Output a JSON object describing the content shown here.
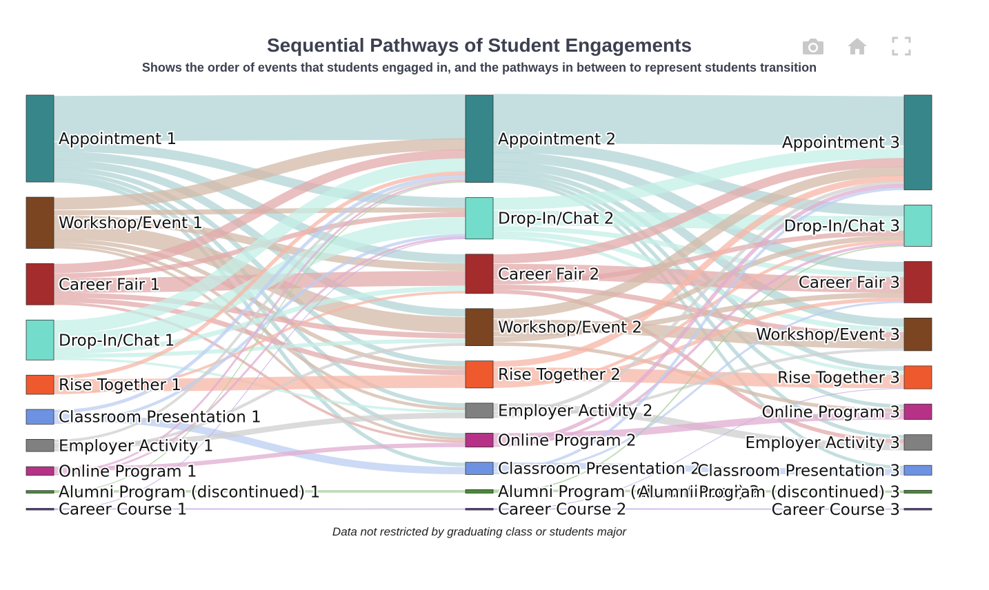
{
  "toolbar": {
    "icons": [
      "camera-icon",
      "home-icon",
      "fullscreen-icon"
    ]
  },
  "chart_data": {
    "type": "sankey",
    "title": "Sequential Pathways of Student Engagements",
    "subtitle": "Shows the order of events that students engaged in, and the pathways in between to represent students transition",
    "footnote": "Data not restricted by graduating class or students major",
    "stages": [
      1,
      2,
      3
    ],
    "categories": [
      {
        "key": "appointment",
        "color": "#37868a",
        "link_color": "#b2d4d6"
      },
      {
        "key": "workshop",
        "color": "#7a4520",
        "link_color": "#d3b9a8"
      },
      {
        "key": "careerfair",
        "color": "#a52c2c",
        "link_color": "#e3aaaa"
      },
      {
        "key": "dropin",
        "color": "#74dccb",
        "link_color": "#c4efe7"
      },
      {
        "key": "rise",
        "color": "#ee5a2d",
        "link_color": "#f7b6a6"
      },
      {
        "key": "classroom",
        "color": "#6e92e2",
        "link_color": "#bccdf2"
      },
      {
        "key": "employer",
        "color": "#808080",
        "link_color": "#cfcfcf"
      },
      {
        "key": "online",
        "color": "#b53287",
        "link_color": "#e0acd0"
      },
      {
        "key": "alumni",
        "color": "#4a8a3a",
        "link_color": "#a9cf9c"
      },
      {
        "key": "course",
        "color": "#5a3aa0",
        "link_color": "#c0aee6"
      }
    ],
    "nodes": [
      {
        "id": "a1",
        "label": "Appointment 1",
        "stage": 1,
        "cat": "appointment",
        "value": 200
      },
      {
        "id": "w1",
        "label": "Workshop/Event 1",
        "stage": 1,
        "cat": "workshop",
        "value": 118
      },
      {
        "id": "c1",
        "label": "Career Fair 1",
        "stage": 1,
        "cat": "careerfair",
        "value": 95
      },
      {
        "id": "d1",
        "label": "Drop-In/Chat 1",
        "stage": 1,
        "cat": "dropin",
        "value": 92
      },
      {
        "id": "r1",
        "label": "Rise Together 1",
        "stage": 1,
        "cat": "rise",
        "value": 44
      },
      {
        "id": "cp1",
        "label": "Classroom Presentation 1",
        "stage": 1,
        "cat": "classroom",
        "value": 34
      },
      {
        "id": "e1",
        "label": "Employer Activity 1",
        "stage": 1,
        "cat": "employer",
        "value": 28
      },
      {
        "id": "o1",
        "label": "Online Program 1",
        "stage": 1,
        "cat": "online",
        "value": 20
      },
      {
        "id": "al1",
        "label": "Alumni Program (discontinued) 1",
        "stage": 1,
        "cat": "alumni",
        "value": 6
      },
      {
        "id": "cc1",
        "label": "Career Course 1",
        "stage": 1,
        "cat": "course",
        "value": 4
      },
      {
        "id": "a2",
        "label": "Appointment 2",
        "stage": 2,
        "cat": "appointment",
        "value": 200
      },
      {
        "id": "d2",
        "label": "Drop-In/Chat 2",
        "stage": 2,
        "cat": "dropin",
        "value": 95
      },
      {
        "id": "c2",
        "label": "Career Fair 2",
        "stage": 2,
        "cat": "careerfair",
        "value": 90
      },
      {
        "id": "w2",
        "label": "Workshop/Event 2",
        "stage": 2,
        "cat": "workshop",
        "value": 85
      },
      {
        "id": "r2",
        "label": "Rise Together 2",
        "stage": 2,
        "cat": "rise",
        "value": 62
      },
      {
        "id": "e2",
        "label": "Employer Activity 2",
        "stage": 2,
        "cat": "employer",
        "value": 34
      },
      {
        "id": "o2",
        "label": "Online Program 2",
        "stage": 2,
        "cat": "online",
        "value": 32
      },
      {
        "id": "cp2",
        "label": "Classroom Presentation 2",
        "stage": 2,
        "cat": "classroom",
        "value": 28
      },
      {
        "id": "al2",
        "label": "Alumni Program (discontinued) 2",
        "stage": 2,
        "cat": "alumni",
        "value": 8
      },
      {
        "id": "cc2",
        "label": "Career Course 2",
        "stage": 2,
        "cat": "course",
        "value": 4
      },
      {
        "id": "a3",
        "label": "Appointment 3",
        "stage": 3,
        "cat": "appointment",
        "value": 165
      },
      {
        "id": "d3",
        "label": "Drop-In/Chat 3",
        "stage": 3,
        "cat": "dropin",
        "value": 72
      },
      {
        "id": "c3",
        "label": "Career Fair 3",
        "stage": 3,
        "cat": "careerfair",
        "value": 72
      },
      {
        "id": "w3",
        "label": "Workshop/Event 3",
        "stage": 3,
        "cat": "workshop",
        "value": 57
      },
      {
        "id": "r3",
        "label": "Rise Together 3",
        "stage": 3,
        "cat": "rise",
        "value": 40
      },
      {
        "id": "o3",
        "label": "Online Program 3",
        "stage": 3,
        "cat": "online",
        "value": 27
      },
      {
        "id": "e3",
        "label": "Employer Activity 3",
        "stage": 3,
        "cat": "employer",
        "value": 27
      },
      {
        "id": "cp3",
        "label": "Classroom Presentation 3",
        "stage": 3,
        "cat": "classroom",
        "value": 17
      },
      {
        "id": "al3",
        "label": "Alumni Program (discontinued) 3",
        "stage": 3,
        "cat": "alumni",
        "value": 5
      },
      {
        "id": "cc3",
        "label": "Career Course 3",
        "stage": 3,
        "cat": "course",
        "value": 3
      }
    ],
    "links": [
      {
        "source": "a1",
        "target": "a2",
        "value": 100
      },
      {
        "source": "a1",
        "target": "d2",
        "value": 20
      },
      {
        "source": "a1",
        "target": "c2",
        "value": 18
      },
      {
        "source": "a1",
        "target": "w2",
        "value": 15
      },
      {
        "source": "a1",
        "target": "r2",
        "value": 10
      },
      {
        "source": "a1",
        "target": "e2",
        "value": 8
      },
      {
        "source": "a1",
        "target": "o2",
        "value": 8
      },
      {
        "source": "a1",
        "target": "cp2",
        "value": 6
      },
      {
        "source": "w1",
        "target": "a2",
        "value": 25
      },
      {
        "source": "w1",
        "target": "d2",
        "value": 10
      },
      {
        "source": "w1",
        "target": "c2",
        "value": 15
      },
      {
        "source": "w1",
        "target": "w2",
        "value": 30
      },
      {
        "source": "w1",
        "target": "r2",
        "value": 8
      },
      {
        "source": "w1",
        "target": "e2",
        "value": 6
      },
      {
        "source": "w1",
        "target": "o2",
        "value": 5
      },
      {
        "source": "c1",
        "target": "a2",
        "value": 20
      },
      {
        "source": "c1",
        "target": "d2",
        "value": 10
      },
      {
        "source": "c1",
        "target": "c2",
        "value": 30
      },
      {
        "source": "c1",
        "target": "w2",
        "value": 10
      },
      {
        "source": "c1",
        "target": "r2",
        "value": 10
      },
      {
        "source": "c1",
        "target": "o2",
        "value": 5
      },
      {
        "source": "d1",
        "target": "a2",
        "value": 30
      },
      {
        "source": "d1",
        "target": "d2",
        "value": 35
      },
      {
        "source": "d1",
        "target": "c2",
        "value": 10
      },
      {
        "source": "d1",
        "target": "w2",
        "value": 8
      },
      {
        "source": "d1",
        "target": "e2",
        "value": 5
      },
      {
        "source": "r1",
        "target": "a2",
        "value": 8
      },
      {
        "source": "r1",
        "target": "r2",
        "value": 25
      },
      {
        "source": "r1",
        "target": "c2",
        "value": 5
      },
      {
        "source": "cp1",
        "target": "a2",
        "value": 6
      },
      {
        "source": "cp1",
        "target": "cp2",
        "value": 10
      },
      {
        "source": "cp1",
        "target": "d2",
        "value": 5
      },
      {
        "source": "e1",
        "target": "a2",
        "value": 5
      },
      {
        "source": "e1",
        "target": "e2",
        "value": 10
      },
      {
        "source": "e1",
        "target": "w2",
        "value": 5
      },
      {
        "source": "o1",
        "target": "o2",
        "value": 8
      },
      {
        "source": "o1",
        "target": "a2",
        "value": 4
      },
      {
        "source": "o1",
        "target": "d2",
        "value": 4
      },
      {
        "source": "al1",
        "target": "al2",
        "value": 3
      },
      {
        "source": "al1",
        "target": "a2",
        "value": 2
      },
      {
        "source": "cc1",
        "target": "cc2",
        "value": 2
      },
      {
        "source": "cc1",
        "target": "d2",
        "value": 1
      },
      {
        "source": "a2",
        "target": "a3",
        "value": 90
      },
      {
        "source": "a2",
        "target": "d3",
        "value": 20
      },
      {
        "source": "a2",
        "target": "c3",
        "value": 18
      },
      {
        "source": "a2",
        "target": "w3",
        "value": 15
      },
      {
        "source": "a2",
        "target": "r3",
        "value": 8
      },
      {
        "source": "a2",
        "target": "o3",
        "value": 6
      },
      {
        "source": "a2",
        "target": "e3",
        "value": 6
      },
      {
        "source": "a2",
        "target": "cp3",
        "value": 5
      },
      {
        "source": "d2",
        "target": "a3",
        "value": 20
      },
      {
        "source": "d2",
        "target": "d3",
        "value": 25
      },
      {
        "source": "d2",
        "target": "c3",
        "value": 8
      },
      {
        "source": "d2",
        "target": "w3",
        "value": 8
      },
      {
        "source": "d2",
        "target": "r3",
        "value": 5
      },
      {
        "source": "c2",
        "target": "a3",
        "value": 15
      },
      {
        "source": "c2",
        "target": "c3",
        "value": 25
      },
      {
        "source": "c2",
        "target": "d3",
        "value": 8
      },
      {
        "source": "c2",
        "target": "w3",
        "value": 8
      },
      {
        "source": "c2",
        "target": "e3",
        "value": 6
      },
      {
        "source": "w2",
        "target": "a3",
        "value": 15
      },
      {
        "source": "w2",
        "target": "w3",
        "value": 18
      },
      {
        "source": "w2",
        "target": "c3",
        "value": 8
      },
      {
        "source": "w2",
        "target": "d3",
        "value": 8
      },
      {
        "source": "w2",
        "target": "o3",
        "value": 5
      },
      {
        "source": "r2",
        "target": "a3",
        "value": 10
      },
      {
        "source": "r2",
        "target": "r3",
        "value": 20
      },
      {
        "source": "r2",
        "target": "c3",
        "value": 6
      },
      {
        "source": "r2",
        "target": "d3",
        "value": 5
      },
      {
        "source": "e2",
        "target": "e3",
        "value": 10
      },
      {
        "source": "e2",
        "target": "a3",
        "value": 5
      },
      {
        "source": "e2",
        "target": "w3",
        "value": 4
      },
      {
        "source": "o2",
        "target": "o3",
        "value": 10
      },
      {
        "source": "o2",
        "target": "a3",
        "value": 6
      },
      {
        "source": "o2",
        "target": "d3",
        "value": 4
      },
      {
        "source": "cp2",
        "target": "cp3",
        "value": 8
      },
      {
        "source": "cp2",
        "target": "a3",
        "value": 4
      },
      {
        "source": "cp2",
        "target": "c3",
        "value": 3
      },
      {
        "source": "al2",
        "target": "al3",
        "value": 3
      },
      {
        "source": "al2",
        "target": "d3",
        "value": 2
      },
      {
        "source": "cc2",
        "target": "cc3",
        "value": 2
      },
      {
        "source": "cc2",
        "target": "r3",
        "value": 1
      }
    ]
  }
}
